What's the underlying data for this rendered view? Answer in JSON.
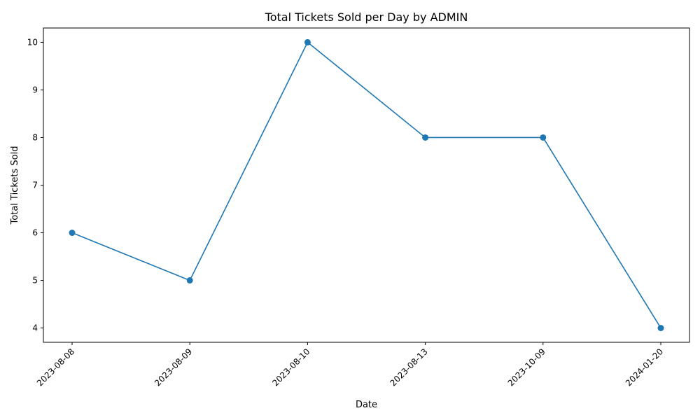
{
  "chart_data": {
    "type": "line",
    "title": "Total Tickets Sold per Day by ADMIN",
    "xlabel": "Date",
    "ylabel": "Total Tickets Sold",
    "categories": [
      "2023-08-08",
      "2023-08-09",
      "2023-08-10",
      "2023-08-13",
      "2023-10-09",
      "2024-01-20"
    ],
    "values": [
      6,
      5,
      10,
      8,
      8,
      4
    ],
    "yticks": [
      4,
      5,
      6,
      7,
      8,
      9,
      10
    ],
    "ylim": [
      3.7,
      10.3
    ],
    "grid": false,
    "legend": "none",
    "marker": "circle",
    "x_tick_rotation": 45,
    "line_color": "#1f77b4"
  }
}
